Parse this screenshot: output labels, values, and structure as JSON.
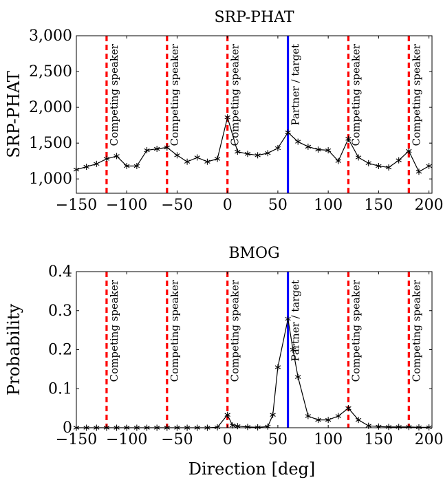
{
  "figure": {
    "xlabel": "Direction [deg]"
  },
  "colors": {
    "competing": "#ff0000",
    "target": "#0000ff",
    "line": "#000000"
  },
  "chart_data": [
    {
      "type": "line",
      "title": "SRP-PHAT",
      "ylabel": "SRP-PHAT",
      "xlim": [
        -150,
        203
      ],
      "ylim": [
        800,
        3000
      ],
      "xticks": [
        -150,
        -100,
        -50,
        0,
        50,
        100,
        150,
        200
      ],
      "xtick_labels": [
        "−150",
        "−100",
        "−50",
        "0",
        "50",
        "100",
        "150",
        "200"
      ],
      "yticks": [
        1000,
        1500,
        2000,
        2500,
        3000
      ],
      "ytick_labels": [
        "1,000",
        "1,500",
        "2,000",
        "2,500",
        "3,000"
      ],
      "series": [
        {
          "marker": "asterisk",
          "x": [
            -150,
            -140,
            -130,
            -120,
            -110,
            -100,
            -90,
            -80,
            -70,
            -60,
            -50,
            -40,
            -30,
            -20,
            -10,
            0,
            10,
            20,
            30,
            40,
            50,
            60,
            70,
            80,
            90,
            100,
            110,
            120,
            130,
            140,
            150,
            160,
            170,
            180,
            190,
            200
          ],
          "y": [
            1130,
            1170,
            1210,
            1280,
            1320,
            1180,
            1180,
            1400,
            1420,
            1440,
            1330,
            1240,
            1300,
            1240,
            1280,
            1860,
            1380,
            1350,
            1330,
            1360,
            1430,
            1650,
            1520,
            1450,
            1410,
            1400,
            1250,
            1560,
            1300,
            1220,
            1180,
            1160,
            1260,
            1390,
            1100,
            1180
          ]
        }
      ],
      "annotations": [
        {
          "x": -120,
          "label": "Competing speaker",
          "kind": "competing"
        },
        {
          "x": -60,
          "label": "Competing speaker",
          "kind": "competing"
        },
        {
          "x": 0,
          "label": "Competing speaker",
          "kind": "competing"
        },
        {
          "x": 60,
          "label": "Partner / target",
          "kind": "target"
        },
        {
          "x": 120,
          "label": "Competing speaker",
          "kind": "competing"
        },
        {
          "x": 180,
          "label": "Competing speaker",
          "kind": "competing"
        }
      ]
    },
    {
      "type": "line",
      "title": "BMOG",
      "ylabel": "Probability",
      "xlim": [
        -150,
        203
      ],
      "ylim": [
        0,
        0.4
      ],
      "xticks": [
        -150,
        -100,
        -50,
        0,
        50,
        100,
        150,
        200
      ],
      "xtick_labels": [
        "−150",
        "−100",
        "−50",
        "0",
        "50",
        "100",
        "150",
        "200"
      ],
      "yticks": [
        0,
        0.1,
        0.2,
        0.3,
        0.4
      ],
      "ytick_labels": [
        "0",
        "0.1",
        "0.2",
        "0.3",
        "0.4"
      ],
      "series": [
        {
          "marker": "asterisk",
          "x": [
            -150,
            -140,
            -130,
            -120,
            -110,
            -100,
            -90,
            -80,
            -70,
            -60,
            -50,
            -40,
            -30,
            -20,
            -10,
            0,
            5,
            10,
            20,
            30,
            40,
            45,
            50,
            60,
            65,
            70,
            80,
            90,
            100,
            110,
            120,
            130,
            140,
            150,
            160,
            170,
            180,
            190,
            200
          ],
          "y": [
            0,
            0,
            0,
            0,
            0,
            0,
            0,
            0,
            0,
            0,
            0,
            0,
            0,
            0,
            0.001,
            0.033,
            0.006,
            0.004,
            0.002,
            0.001,
            0.003,
            0.033,
            0.155,
            0.279,
            0.2,
            0.13,
            0.03,
            0.02,
            0.02,
            0.03,
            0.05,
            0.02,
            0.005,
            0.003,
            0.002,
            0.002,
            0.002,
            0.001,
            0.001
          ]
        }
      ],
      "annotations": [
        {
          "x": -120,
          "label": "Competing speaker",
          "kind": "competing"
        },
        {
          "x": -60,
          "label": "Competing speaker",
          "kind": "competing"
        },
        {
          "x": 0,
          "label": "Competing speaker",
          "kind": "competing"
        },
        {
          "x": 60,
          "label": "Partner / target",
          "kind": "target"
        },
        {
          "x": 120,
          "label": "Competing speaker",
          "kind": "competing"
        },
        {
          "x": 180,
          "label": "Competing speaker",
          "kind": "competing"
        }
      ]
    }
  ]
}
